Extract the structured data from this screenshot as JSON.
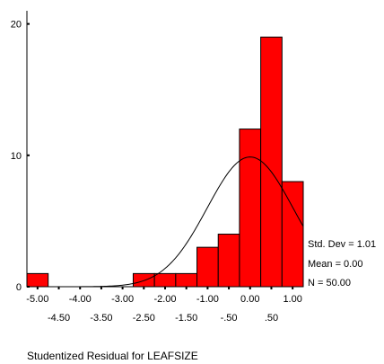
{
  "chart_data": {
    "type": "bar",
    "title": "",
    "xlabel": "Studentized Residual for LEAFSIZE",
    "ylabel": "",
    "bin_width": 0.5,
    "bin_centers": [
      -5.0,
      -4.5,
      -4.0,
      -3.5,
      -3.0,
      -2.5,
      -2.0,
      -1.5,
      -1.0,
      -0.5,
      0.0,
      0.5,
      1.0
    ],
    "values": [
      1,
      0,
      0,
      0,
      0,
      1,
      1,
      1,
      3,
      4,
      12,
      19,
      8
    ],
    "bar_color": "#ff0000",
    "xlim": [
      -5.25,
      1.25
    ],
    "ylim": [
      0,
      21
    ],
    "y_ticks": [
      0,
      10,
      20
    ],
    "x_tick_labels_top": [
      "-5.00",
      "-4.00",
      "-3.00",
      "-2.00",
      "-1.00",
      "0.00",
      "1.00"
    ],
    "x_tick_values_top": [
      -5.0,
      -4.0,
      -3.0,
      -2.0,
      -1.0,
      0.0,
      1.0
    ],
    "x_tick_labels_bottom": [
      "-4.50",
      "-3.50",
      "-2.50",
      "-1.50",
      "-.50",
      ".50"
    ],
    "x_tick_values_bottom": [
      -4.5,
      -3.5,
      -2.5,
      -1.5,
      -0.5,
      0.5
    ],
    "normal_curve": {
      "mean": 0.0,
      "sd": 1.01,
      "n": 50
    },
    "grid": false,
    "legend": "none"
  },
  "stats": {
    "std_dev": "Std. Dev = 1.01",
    "mean": "Mean = 0.00",
    "n": "N = 50.00"
  }
}
